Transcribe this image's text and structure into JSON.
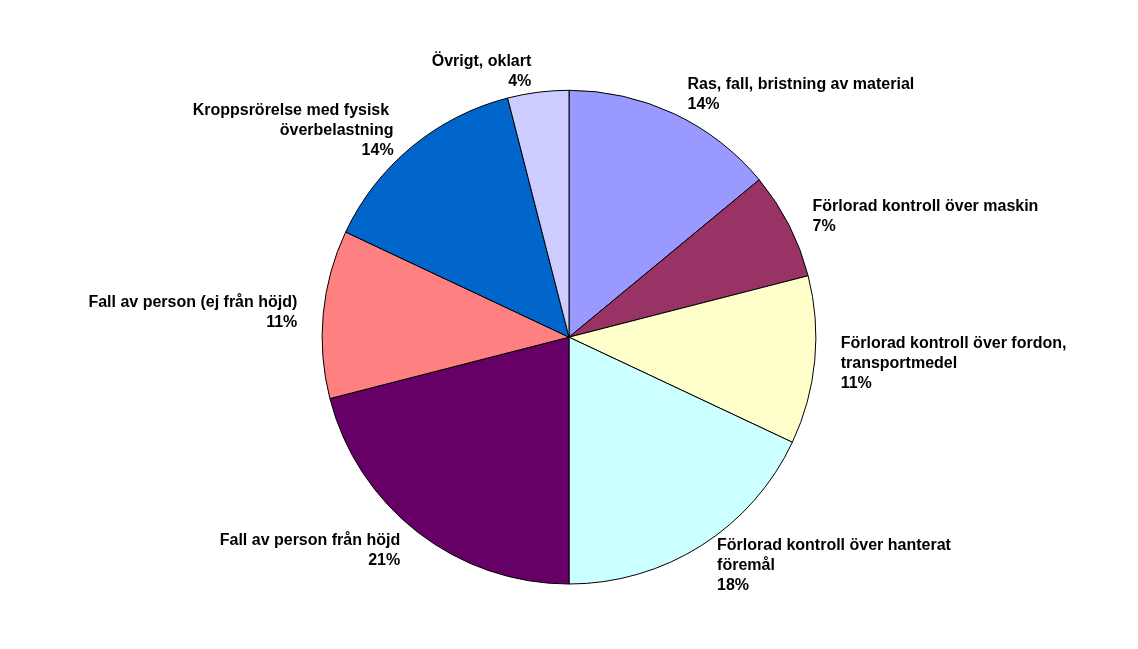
{
  "chart_data": {
    "type": "pie",
    "categories": [
      "Ras, fall, bristning av material",
      "Förlorad kontroll över maskin",
      "Förlorad kontroll över fordon, transportmedel",
      "Förlorad kontroll över hanterat föremål",
      "Fall av person från höjd",
      "Fall av person (ej från höjd)",
      "Kroppsrörelse med fysisk överbelastning",
      "Övrigt, oklart"
    ],
    "values": [
      14,
      7,
      11,
      18,
      21,
      11,
      14,
      4
    ],
    "value_labels": [
      "14%",
      "7%",
      "11%",
      "18%",
      "21%",
      "11%",
      "14%",
      "4%"
    ],
    "colors": [
      "#9999ff",
      "#993366",
      "#ffffcc",
      "#ccffff",
      "#660066",
      "#ff8080",
      "#0066cc",
      "#ccccff"
    ],
    "legend": false
  }
}
